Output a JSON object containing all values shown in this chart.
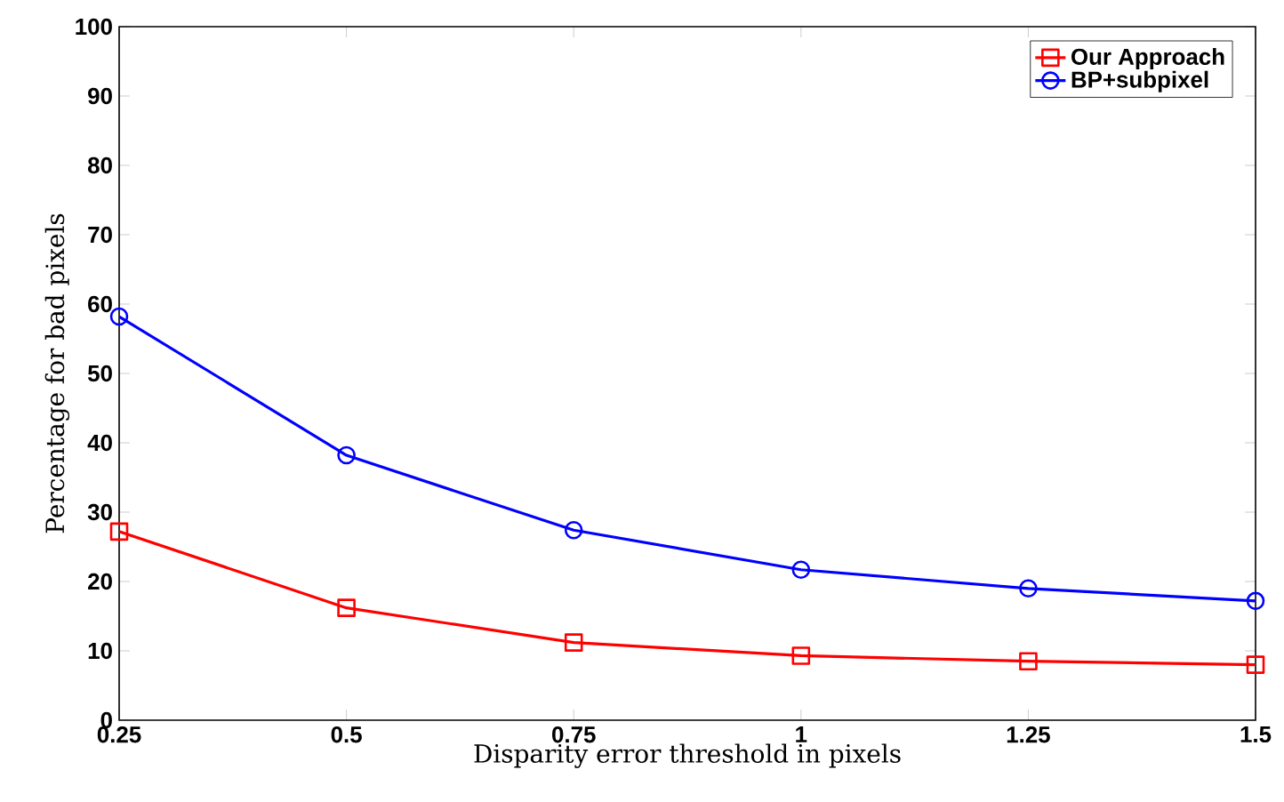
{
  "chart_data": {
    "type": "line",
    "xlabel": "Disparity error threshold in pixels",
    "ylabel": "Percentage for bad pixels",
    "x": [
      0.25,
      0.5,
      0.75,
      1,
      1.25,
      1.5
    ],
    "series": [
      {
        "name": "Our Approach",
        "color": "#ff0000",
        "marker": "square",
        "values": [
          27.2,
          16.2,
          11.2,
          9.3,
          8.5,
          8.0
        ]
      },
      {
        "name": "BP+subpixel",
        "color": "#0000ff",
        "marker": "circle",
        "values": [
          58.2,
          38.2,
          27.4,
          21.7,
          19.0,
          17.2
        ]
      }
    ],
    "xlim": [
      0.25,
      1.5
    ],
    "ylim": [
      0,
      100
    ],
    "xticks": [
      0.25,
      0.5,
      0.75,
      1,
      1.25,
      1.5
    ],
    "yticks": [
      0,
      10,
      20,
      30,
      40,
      50,
      60,
      70,
      80,
      90,
      100
    ],
    "grid": false,
    "legend": "top right",
    "line_style": "solid"
  }
}
